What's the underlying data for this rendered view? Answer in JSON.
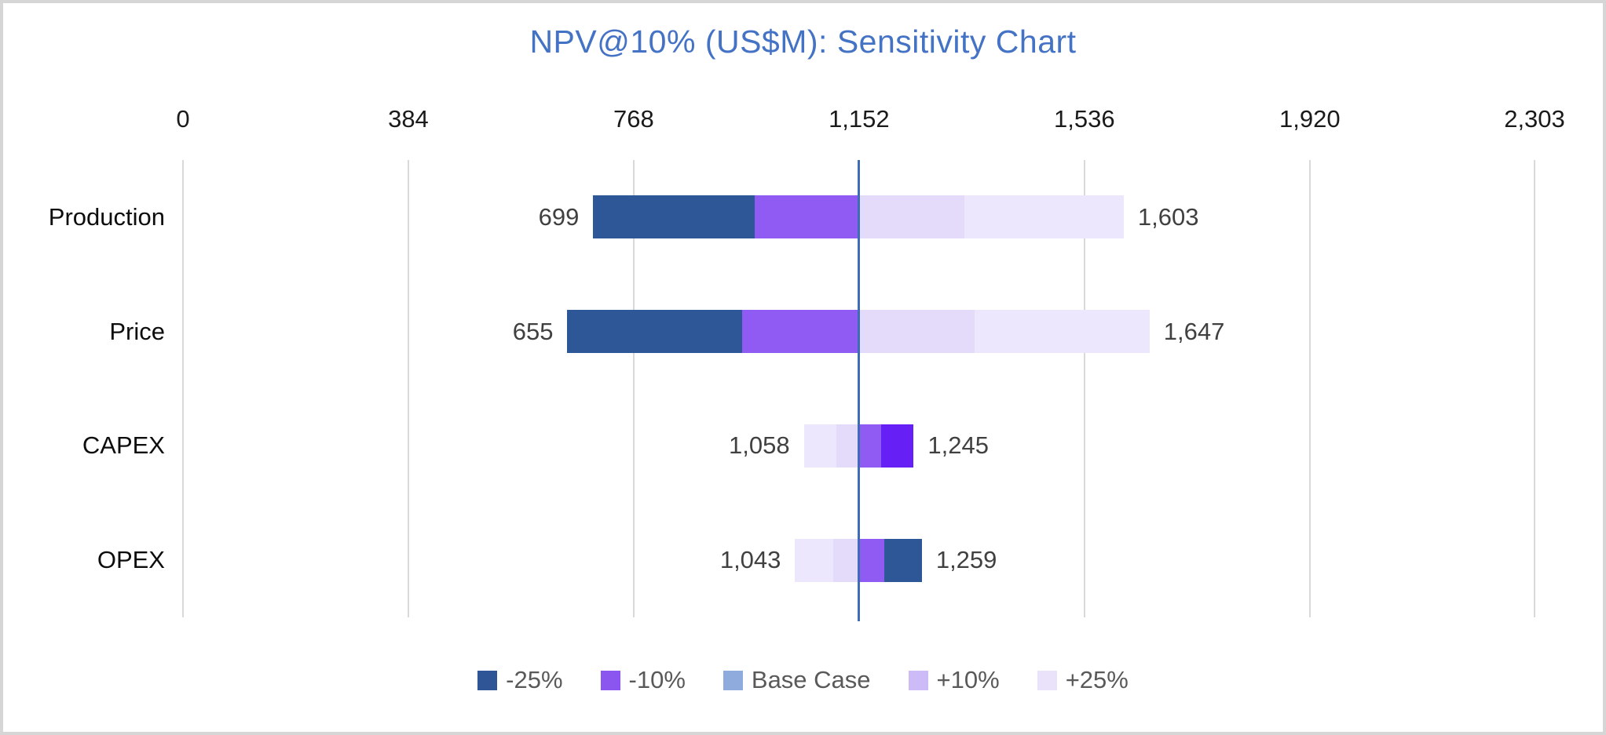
{
  "window": {
    "background": "#FFFFFF",
    "frame_border_color": "#D6D6D6"
  },
  "chart_data": {
    "type": "bar",
    "subtype": "horizontal-stacked-tornado",
    "title": "NPV@10% (US$M): Sensitivity Chart",
    "title_color": "#4472C4",
    "x_axis": {
      "position": "top",
      "min": 0,
      "max": 2303,
      "ticks": [
        {
          "value": 0,
          "label": "0"
        },
        {
          "value": 384,
          "label": "384"
        },
        {
          "value": 768,
          "label": "768"
        },
        {
          "value": 1152,
          "label": "1,152"
        },
        {
          "value": 1536,
          "label": "1,536"
        },
        {
          "value": 1920,
          "label": "1,920"
        },
        {
          "value": 2303,
          "label": "2,303"
        }
      ],
      "tick_label_color": "#1A1A1A",
      "gridline_color": "#D9D9D9",
      "grid": true
    },
    "base_case": {
      "value": 1151,
      "line_color": "#3E6DB5"
    },
    "categories": [
      "Production",
      "Price",
      "CAPEX",
      "OPEX"
    ],
    "rows": [
      {
        "category": "Production",
        "min_value": 699,
        "max_value": 1603,
        "min_label": "699",
        "max_label": "1,603",
        "segments": [
          {
            "series": "-25%",
            "from": 699,
            "to": 974,
            "color": "#2E5797"
          },
          {
            "series": "-10%",
            "from": 974,
            "to": 1151,
            "color": "#8F5BF3"
          },
          {
            "series": "+10%",
            "from": 1151,
            "to": 1332,
            "color": "#E4DBFA"
          },
          {
            "series": "+25%",
            "from": 1332,
            "to": 1603,
            "color": "#ECE7FC"
          }
        ]
      },
      {
        "category": "Price",
        "min_value": 655,
        "max_value": 1647,
        "min_label": "655",
        "max_label": "1,647",
        "segments": [
          {
            "series": "-25%",
            "from": 655,
            "to": 953,
            "color": "#2E5797"
          },
          {
            "series": "-10%",
            "from": 953,
            "to": 1151,
            "color": "#8F5BF3"
          },
          {
            "series": "+10%",
            "from": 1151,
            "to": 1349,
            "color": "#E4DBFA"
          },
          {
            "series": "+25%",
            "from": 1349,
            "to": 1647,
            "color": "#ECE7FC"
          }
        ]
      },
      {
        "category": "CAPEX",
        "min_value": 1058,
        "max_value": 1245,
        "min_label": "1,058",
        "max_label": "1,245",
        "segments": [
          {
            "series": "+25%",
            "from": 1058,
            "to": 1114,
            "color": "#ECE7FC"
          },
          {
            "series": "+10%",
            "from": 1114,
            "to": 1151,
            "color": "#E4DBFA"
          },
          {
            "series": "-10%",
            "from": 1151,
            "to": 1189,
            "color": "#8F5BF3"
          },
          {
            "series": "-25%",
            "from": 1189,
            "to": 1245,
            "color": "#661FF5"
          }
        ]
      },
      {
        "category": "OPEX",
        "min_value": 1043,
        "max_value": 1259,
        "min_label": "1,043",
        "max_label": "1,259",
        "segments": [
          {
            "series": "+25%",
            "from": 1043,
            "to": 1108,
            "color": "#ECE7FC"
          },
          {
            "series": "+10%",
            "from": 1108,
            "to": 1151,
            "color": "#E4DBFA"
          },
          {
            "series": "-10%",
            "from": 1151,
            "to": 1195,
            "color": "#8F5BF3"
          },
          {
            "series": "-25%",
            "from": 1195,
            "to": 1259,
            "color": "#2E5797"
          }
        ]
      }
    ],
    "legend": {
      "position": "bottom-center",
      "text_color": "#595959",
      "items": [
        {
          "label": "-25%",
          "color": "#2F5597"
        },
        {
          "label": "-10%",
          "color": "#8B55F0"
        },
        {
          "label": "Base Case",
          "color": "#8FAADC"
        },
        {
          "label": "+10%",
          "color": "#CDBBF7"
        },
        {
          "label": "+25%",
          "color": "#E9E2FA"
        }
      ]
    },
    "value_label_color": "#404040",
    "category_label_color": "#0D0D0D"
  }
}
